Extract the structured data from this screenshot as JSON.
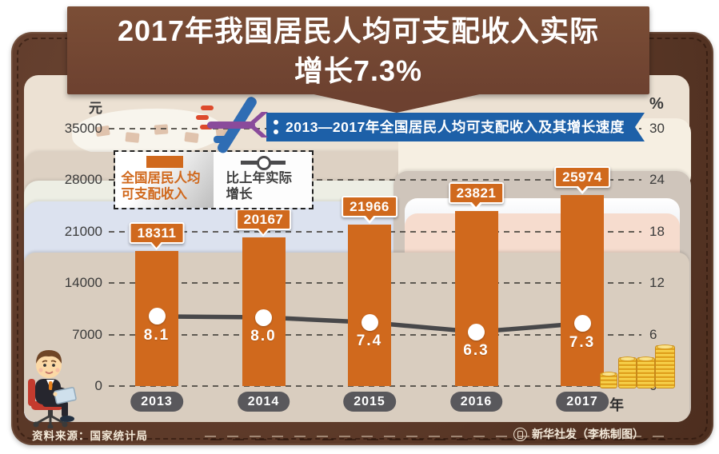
{
  "header": {
    "title_lines": [
      "2017年我国居民人均可支配收入实际",
      "增长7.3%"
    ]
  },
  "ribbon": {
    "text": "2013—2017年全国居民人均可支配收入及其增长速度"
  },
  "legend": {
    "bar_label": "全国居民人均可支配收入",
    "line_label": "比上年实际增长"
  },
  "axes": {
    "left_unit": "元",
    "right_unit": "%",
    "x_suffix": "年"
  },
  "chart_data": {
    "type": "bar",
    "title": "2013—2017年全国居民人均可支配收入及其增长速度",
    "categories": [
      "2013",
      "2014",
      "2015",
      "2016",
      "2017"
    ],
    "series": [
      {
        "name": "全国居民人均可支配收入",
        "type": "bar",
        "unit": "元",
        "values": [
          18311,
          20167,
          21966,
          23821,
          25974
        ]
      },
      {
        "name": "比上年实际增长",
        "type": "line",
        "unit": "%",
        "values": [
          8.1,
          8.0,
          7.4,
          6.3,
          7.3
        ]
      }
    ],
    "xlabel": "年",
    "left_axis": {
      "unit": "元",
      "ticks": [
        0,
        7000,
        14000,
        21000,
        28000,
        35000
      ],
      "range": [
        0,
        35000
      ]
    },
    "right_axis": {
      "unit": "%",
      "ticks": [
        0,
        6,
        12,
        18,
        24,
        30
      ],
      "range": [
        0,
        30
      ]
    },
    "grid": "dashed-horizontal",
    "legend_position": "upper-left"
  },
  "footer": {
    "source": "资料来源：国家统计局",
    "credit": "新华社发（李栋制图）"
  },
  "colors": {
    "bar": "#d0691d",
    "line": "#48484a",
    "ribbon_blue": "#1d60a8",
    "banner_brown": "#6d4130",
    "leather_brown": "#5d3a29",
    "year_pill": "#59585c",
    "coin_gold": "#e0a21e"
  }
}
